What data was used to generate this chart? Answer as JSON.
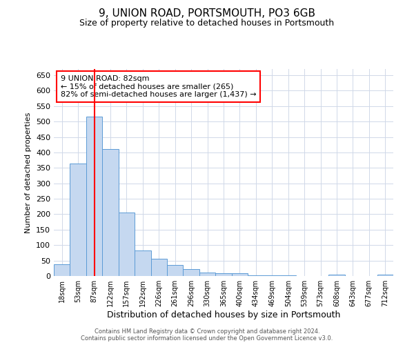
{
  "title": "9, UNION ROAD, PORTSMOUTH, PO3 6GB",
  "subtitle": "Size of property relative to detached houses in Portsmouth",
  "xlabel": "Distribution of detached houses by size in Portsmouth",
  "ylabel": "Number of detached properties",
  "categories": [
    "18sqm",
    "53sqm",
    "87sqm",
    "122sqm",
    "157sqm",
    "192sqm",
    "226sqm",
    "261sqm",
    "296sqm",
    "330sqm",
    "365sqm",
    "400sqm",
    "434sqm",
    "469sqm",
    "504sqm",
    "539sqm",
    "573sqm",
    "608sqm",
    "643sqm",
    "677sqm",
    "712sqm"
  ],
  "values": [
    37,
    365,
    515,
    410,
    205,
    82,
    55,
    35,
    22,
    12,
    8,
    8,
    2,
    2,
    2,
    0,
    0,
    5,
    0,
    0,
    4
  ],
  "bar_color": "#c5d8f0",
  "bar_edge_color": "#5b9bd5",
  "vline_x": 2,
  "vline_color": "red",
  "annotation_text": "9 UNION ROAD: 82sqm\n← 15% of detached houses are smaller (265)\n82% of semi-detached houses are larger (1,437) →",
  "annotation_box_color": "white",
  "annotation_box_edge": "red",
  "ylim": [
    0,
    670
  ],
  "yticks": [
    0,
    50,
    100,
    150,
    200,
    250,
    300,
    350,
    400,
    450,
    500,
    550,
    600,
    650
  ],
  "footer_line1": "Contains HM Land Registry data © Crown copyright and database right 2024.",
  "footer_line2": "Contains public sector information licensed under the Open Government Licence v3.0.",
  "background_color": "#ffffff",
  "grid_color": "#d0d8e8",
  "title_fontsize": 11,
  "subtitle_fontsize": 9,
  "xlabel_fontsize": 9,
  "ylabel_fontsize": 8,
  "tick_fontsize": 8,
  "xtick_fontsize": 7,
  "footer_fontsize": 6,
  "annotation_fontsize": 8
}
